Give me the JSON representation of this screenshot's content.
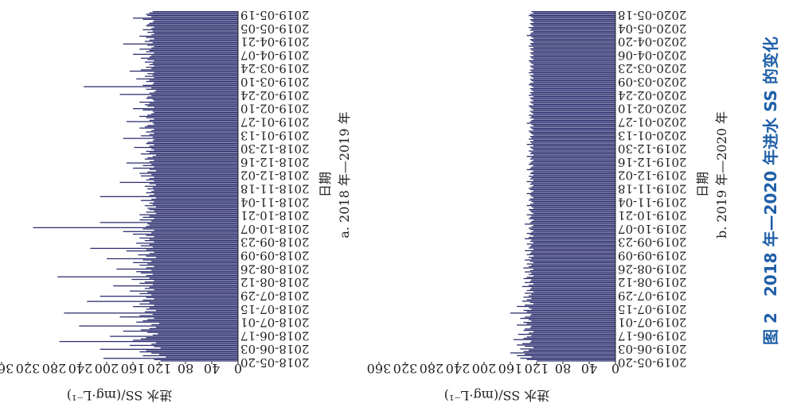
{
  "figure_caption": "图 2　2018 年—2020 年进水 SS 的变化",
  "colors": {
    "bar": "#2b2d6e",
    "axis": "#1f1f1f",
    "caption": "#1f5fa8"
  },
  "chart_data": [
    {
      "type": "bar",
      "title": "a. 2018 年—2019 年",
      "xlabel": "日期",
      "ylabel": "进水 SS/(mg·L⁻¹)",
      "ylim": [
        0,
        360
      ],
      "yticks": [
        "0",
        "40",
        "80",
        "120",
        "160",
        "200",
        "240",
        "280",
        "320",
        "360"
      ],
      "date_labels": [
        "2018-05-20",
        "2018-06-03",
        "2018-06-17",
        "2018-07-01",
        "2018-07-15",
        "2018-07-29",
        "2018-08-12",
        "2018-08-26",
        "2018-09-09",
        "2018-09-23",
        "2018-10-07",
        "2018-10-21",
        "2018-11-04",
        "2018-11-18",
        "2018-12-02",
        "2018-12-16",
        "2018-12-30",
        "2019-01-13",
        "2019-01-27",
        "2019-02-10",
        "2019-02-24",
        "2019-03-10",
        "2019-03-24",
        "2019-04-07",
        "2019-04-21",
        "2019-05-05",
        "2019-05-19"
      ],
      "values": [
        118,
        128,
        205,
        110,
        145,
        120,
        132,
        150,
        140,
        210,
        118,
        128,
        165,
        132,
        125,
        272,
        160,
        148,
        140,
        195,
        130,
        122,
        138,
        175,
        148,
        135,
        125,
        242,
        132,
        120,
        155,
        145,
        138,
        128,
        180,
        150,
        130,
        265,
        142,
        125,
        140,
        135,
        160,
        128,
        150,
        135,
        230,
        145,
        128,
        140,
        210,
        132,
        150,
        138,
        165,
        128,
        142,
        135,
        190,
        130,
        150,
        142,
        128,
        162,
        135,
        275,
        140,
        130,
        148,
        155,
        132,
        185,
        140,
        128,
        150,
        138,
        160,
        132,
        145,
        200,
        125,
        140,
        152,
        135,
        128,
        170,
        140,
        225,
        130,
        148,
        135,
        155,
        128,
        142,
        135,
        150,
        128,
        140,
        160,
        132,
        175,
        128,
        145,
        312,
        140,
        135,
        138,
        210,
        132,
        150,
        128,
        145,
        135,
        150,
        125,
        140,
        128,
        135,
        138,
        125,
        142,
        130,
        135,
        128,
        148,
        132,
        125,
        210,
        135,
        128,
        140,
        132,
        128,
        138,
        130,
        142,
        125,
        135,
        180,
        128,
        140,
        135,
        128,
        148,
        132,
        150,
        138,
        125,
        135,
        160,
        128,
        145,
        132,
        170,
        135,
        128,
        142,
        138,
        130,
        125,
        148,
        135,
        140,
        128,
        132,
        158,
        135,
        128,
        140,
        138,
        130,
        128,
        175,
        130,
        148,
        135,
        128,
        140,
        132,
        128,
        150,
        142,
        138,
        128,
        130,
        170,
        135,
        128,
        140,
        150,
        138,
        132,
        128,
        130,
        145,
        160,
        128,
        138,
        142,
        135,
        150,
        128,
        130,
        140,
        138,
        132,
        180,
        135,
        128,
        125,
        140,
        132,
        235,
        145,
        130,
        128,
        140,
        135,
        155,
        128,
        142,
        130,
        138,
        128,
        165,
        148,
        132,
        140,
        128,
        135,
        130,
        142,
        128,
        138,
        148,
        135,
        132,
        160,
        128,
        140,
        135,
        150,
        132,
        128,
        138,
        175,
        130,
        142,
        135,
        128,
        140,
        150,
        132,
        128,
        138,
        130,
        145,
        132,
        128,
        140,
        138,
        135,
        130,
        128,
        145,
        160,
        132,
        138,
        140,
        135,
        130
      ],
      "bar_color": "#2b2d6e"
    },
    {
      "type": "bar",
      "title": "b. 2019 年—2020 年",
      "xlabel": "日期",
      "ylabel": "进水 SS/(mg·L⁻¹)",
      "ylim": [
        0,
        360
      ],
      "yticks": [
        "0",
        "40",
        "80",
        "120",
        "160",
        "200",
        "240",
        "280",
        "320",
        "360"
      ],
      "date_labels": [
        "2019-05-20",
        "2019-06-03",
        "2019-06-17",
        "2019-07-01",
        "2019-07-15",
        "2019-07-29",
        "2019-08-12",
        "2019-08-26",
        "2019-09-09",
        "2019-09-23",
        "2019-10-07",
        "2019-10-21",
        "2019-11-04",
        "2019-11-18",
        "2019-12-02",
        "2019-12-16",
        "2019-12-30",
        "2020-01-13",
        "2020-01-27",
        "2020-02-10",
        "2020-02-24",
        "2020-03-09",
        "2020-03-23",
        "2020-04-06",
        "2020-04-20",
        "2020-05-04",
        "2020-05-18"
      ],
      "values": [
        120,
        135,
        145,
        128,
        150,
        138,
        160,
        140,
        132,
        145,
        125,
        138,
        150,
        142,
        130,
        128,
        155,
        140,
        135,
        128,
        148,
        132,
        125,
        140,
        138,
        130,
        128,
        150,
        135,
        140,
        128,
        132,
        145,
        138,
        130,
        128,
        160,
        135,
        140,
        128,
        132,
        150,
        138,
        125,
        130,
        142,
        135,
        128,
        140,
        132,
        128,
        138,
        125,
        135,
        130,
        128,
        142,
        132,
        125,
        138,
        130,
        128,
        140,
        135,
        125,
        132,
        128,
        138,
        130,
        125,
        140,
        132,
        128,
        135,
        125,
        130,
        138,
        128,
        132,
        125,
        135,
        130,
        128,
        138,
        125,
        132,
        130,
        128,
        135,
        125,
        130,
        128,
        138,
        132,
        125,
        130,
        135,
        128,
        125,
        130,
        132,
        128,
        125,
        138,
        130,
        128,
        125,
        132,
        130,
        128,
        135,
        125,
        128,
        130,
        132,
        125,
        128,
        135,
        130,
        125,
        128,
        132,
        130,
        125,
        128,
        130,
        135,
        128,
        125,
        130,
        132,
        128,
        125,
        130,
        128,
        135,
        125,
        130,
        128,
        132,
        125,
        130,
        128,
        125,
        135,
        130,
        128,
        125,
        132,
        130,
        128,
        125,
        130,
        128,
        135,
        125,
        130,
        128,
        132,
        125,
        128,
        130,
        125,
        135,
        128,
        130,
        125,
        132,
        128,
        130,
        125,
        128,
        130,
        132,
        125,
        128,
        130,
        125,
        128,
        135,
        130,
        128,
        125,
        130,
        128,
        132,
        125,
        128,
        130,
        125,
        128,
        130,
        132,
        125,
        128,
        130,
        125,
        128,
        130,
        125,
        132,
        128,
        130,
        125,
        128,
        130,
        125,
        128,
        132,
        130,
        125,
        128,
        130,
        125,
        128,
        130,
        125,
        132,
        128,
        130,
        125,
        128,
        130,
        125,
        128,
        130,
        132,
        125,
        128,
        130,
        125,
        128,
        130,
        125,
        128,
        130,
        125,
        132,
        128,
        130,
        125,
        128,
        130,
        125,
        128,
        135,
        130,
        128,
        125,
        130,
        128,
        132,
        125,
        128,
        130,
        125,
        128,
        130,
        125,
        128,
        132,
        130,
        125,
        128
      ],
      "bar_color": "#2b2d6e"
    }
  ]
}
